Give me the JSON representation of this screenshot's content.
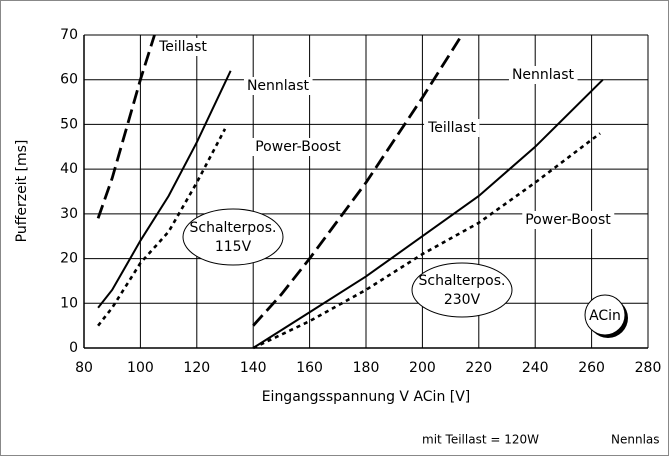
{
  "chart_data": {
    "type": "line",
    "xlabel": "Eingangsspannung V ACin [V]",
    "ylabel": "Pufferzeit [ms]",
    "xlim": [
      80,
      280
    ],
    "xticks": [
      80,
      100,
      120,
      140,
      160,
      180,
      200,
      220,
      240,
      260,
      280
    ],
    "ylim": [
      0,
      70
    ],
    "yticks": [
      0,
      10,
      20,
      30,
      40,
      50,
      60,
      70
    ],
    "grid": true,
    "series": [
      {
        "name": "Teillast",
        "color": "#000000",
        "dash": "dashed",
        "x": [
          85,
          90,
          100,
          105
        ],
        "values": [
          29,
          38,
          60,
          70
        ]
      },
      {
        "name": "Nennlast",
        "color": "#000000",
        "dash": "solid",
        "x": [
          85,
          90,
          100,
          110,
          120,
          132
        ],
        "values": [
          9,
          13,
          24,
          34,
          46,
          62
        ]
      },
      {
        "name": "Power-Boost",
        "color": "#000000",
        "dash": "dotted",
        "x": [
          85,
          90,
          100,
          110,
          120,
          130
        ],
        "values": [
          5,
          9,
          19,
          26,
          37,
          49
        ]
      },
      {
        "name": "Teillast",
        "color": "#000000",
        "dash": "dashed",
        "x": [
          140,
          150,
          160,
          180,
          200,
          214
        ],
        "values": [
          5,
          12,
          20,
          37,
          56,
          70
        ]
      },
      {
        "name": "Nennlast",
        "color": "#000000",
        "dash": "solid",
        "x": [
          140,
          150,
          160,
          180,
          200,
          220,
          240,
          264
        ],
        "values": [
          0,
          4,
          8,
          16,
          25,
          34,
          45,
          60
        ]
      },
      {
        "name": "Power-Boost",
        "color": "#000000",
        "dash": "dotted",
        "x": [
          140,
          160,
          180,
          200,
          220,
          240,
          263
        ],
        "values": [
          0,
          6,
          13,
          21,
          28,
          37,
          48
        ]
      }
    ],
    "annotations": [
      "Schalterpos.",
      "115V",
      "Schalterpos.",
      "230V",
      "ACin"
    ],
    "footer": [
      "mit Teillast = 120W",
      "Nennlas"
    ]
  }
}
